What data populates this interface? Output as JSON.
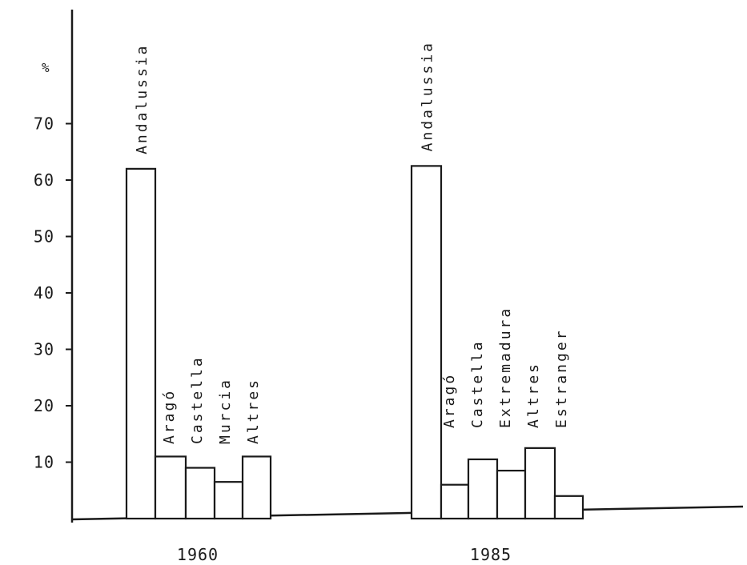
{
  "chart_data": {
    "type": "bar",
    "title": "",
    "xlabel": "",
    "ylabel": "%",
    "ylim": [
      0,
      80
    ],
    "yticks": [
      10,
      20,
      30,
      40,
      50,
      60,
      70
    ],
    "grid": false,
    "groups": [
      {
        "label": "1960",
        "categories": [
          "Andalussia",
          "Aragó",
          "Castella",
          "Murcia",
          "Altres"
        ],
        "values": [
          62,
          11,
          9,
          6.5,
          11
        ]
      },
      {
        "label": "1985",
        "categories": [
          "Andalussia",
          "Aragó",
          "Castella",
          "Extremadura",
          "Altres",
          "Estranger"
        ],
        "values": [
          62.5,
          6,
          10.5,
          8.5,
          12.5,
          4
        ]
      }
    ]
  }
}
